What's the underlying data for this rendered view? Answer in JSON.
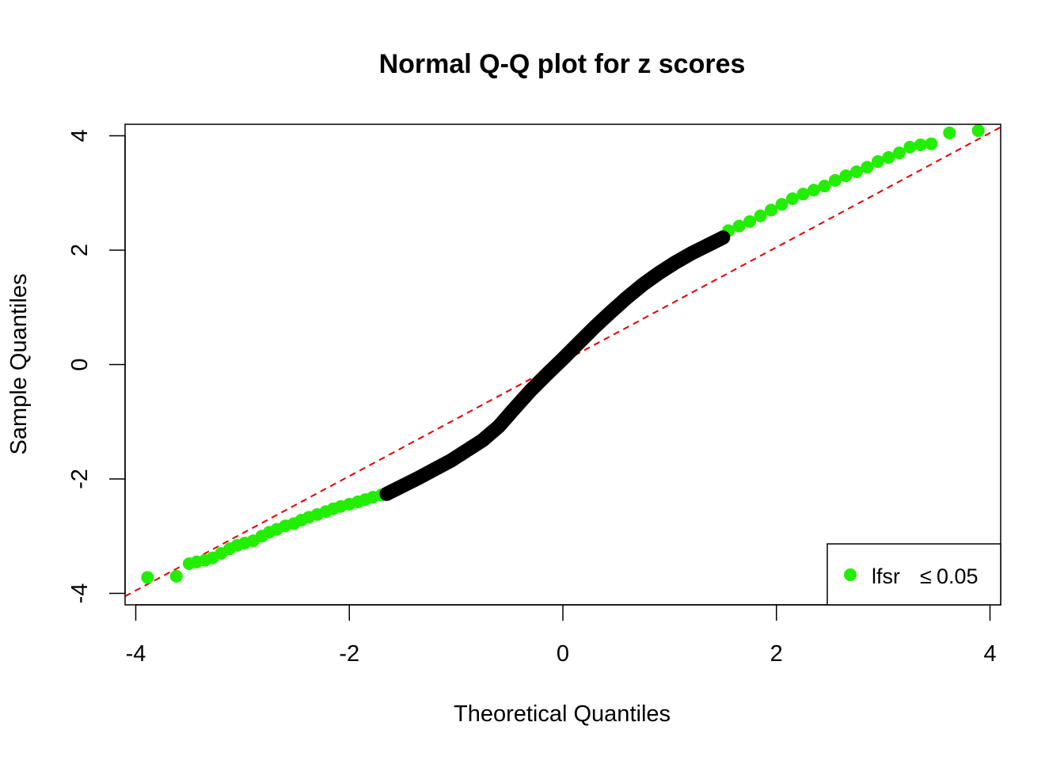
{
  "chart_data": {
    "type": "scatter",
    "title": "Normal Q-Q plot for z scores",
    "xlabel": "Theoretical Quantiles",
    "ylabel": "Sample Quantiles",
    "xlim": [
      -4.1,
      4.1
    ],
    "ylim": [
      -4.2,
      4.2
    ],
    "xticks": [
      -4,
      -2,
      0,
      2,
      4
    ],
    "yticks": [
      -4,
      -2,
      0,
      2,
      4
    ],
    "grid": false,
    "legend": {
      "position": "bottom-right",
      "label": "lfsr",
      "label_symbol": "≤",
      "label_value": "0.05"
    },
    "colors": {
      "highlight": "#22ee00",
      "base": "#000000",
      "reference_line": "#e00000"
    },
    "reference_line": {
      "intercept": 0.05,
      "slope": 1.0,
      "style": "dashed"
    },
    "series": [
      {
        "name": "lfsr ≤ 0.05",
        "color": "#22ee00",
        "x": [
          -3.89,
          -3.62,
          -3.5,
          -3.43,
          -3.35,
          -3.28,
          -3.2,
          -3.12,
          -3.05,
          -2.98,
          -2.9,
          -2.82,
          -2.75,
          -2.68,
          -2.6,
          -2.52,
          -2.45,
          -2.38,
          -2.3,
          -2.22,
          -2.15,
          -2.08,
          -2.0,
          -1.92,
          -1.85,
          -1.78,
          -1.7,
          1.55,
          1.65,
          1.75,
          1.85,
          1.95,
          2.05,
          2.15,
          2.25,
          2.35,
          2.45,
          2.55,
          2.65,
          2.75,
          2.85,
          2.95,
          3.05,
          3.15,
          3.25,
          3.35,
          3.45,
          3.62,
          3.89
        ],
        "y": [
          -3.72,
          -3.7,
          -3.48,
          -3.45,
          -3.42,
          -3.38,
          -3.3,
          -3.22,
          -3.16,
          -3.12,
          -3.08,
          -3.0,
          -2.93,
          -2.88,
          -2.82,
          -2.78,
          -2.72,
          -2.67,
          -2.62,
          -2.57,
          -2.52,
          -2.48,
          -2.44,
          -2.4,
          -2.36,
          -2.32,
          -2.28,
          2.34,
          2.42,
          2.5,
          2.6,
          2.7,
          2.8,
          2.9,
          2.98,
          3.05,
          3.12,
          3.22,
          3.3,
          3.37,
          3.45,
          3.55,
          3.62,
          3.7,
          3.8,
          3.84,
          3.86,
          4.05,
          4.09
        ]
      },
      {
        "name": "",
        "color": "#000000",
        "x": [
          -1.65,
          -1.5,
          -1.35,
          -1.2,
          -1.05,
          -0.9,
          -0.75,
          -0.6,
          -0.45,
          -0.3,
          -0.15,
          0.0,
          0.15,
          0.3,
          0.45,
          0.6,
          0.75,
          0.9,
          1.05,
          1.2,
          1.35,
          1.5
        ],
        "y": [
          -2.26,
          -2.12,
          -1.98,
          -1.83,
          -1.68,
          -1.5,
          -1.32,
          -1.08,
          -0.76,
          -0.45,
          -0.17,
          0.1,
          0.38,
          0.66,
          0.92,
          1.17,
          1.4,
          1.6,
          1.78,
          1.94,
          2.08,
          2.22
        ]
      }
    ]
  }
}
